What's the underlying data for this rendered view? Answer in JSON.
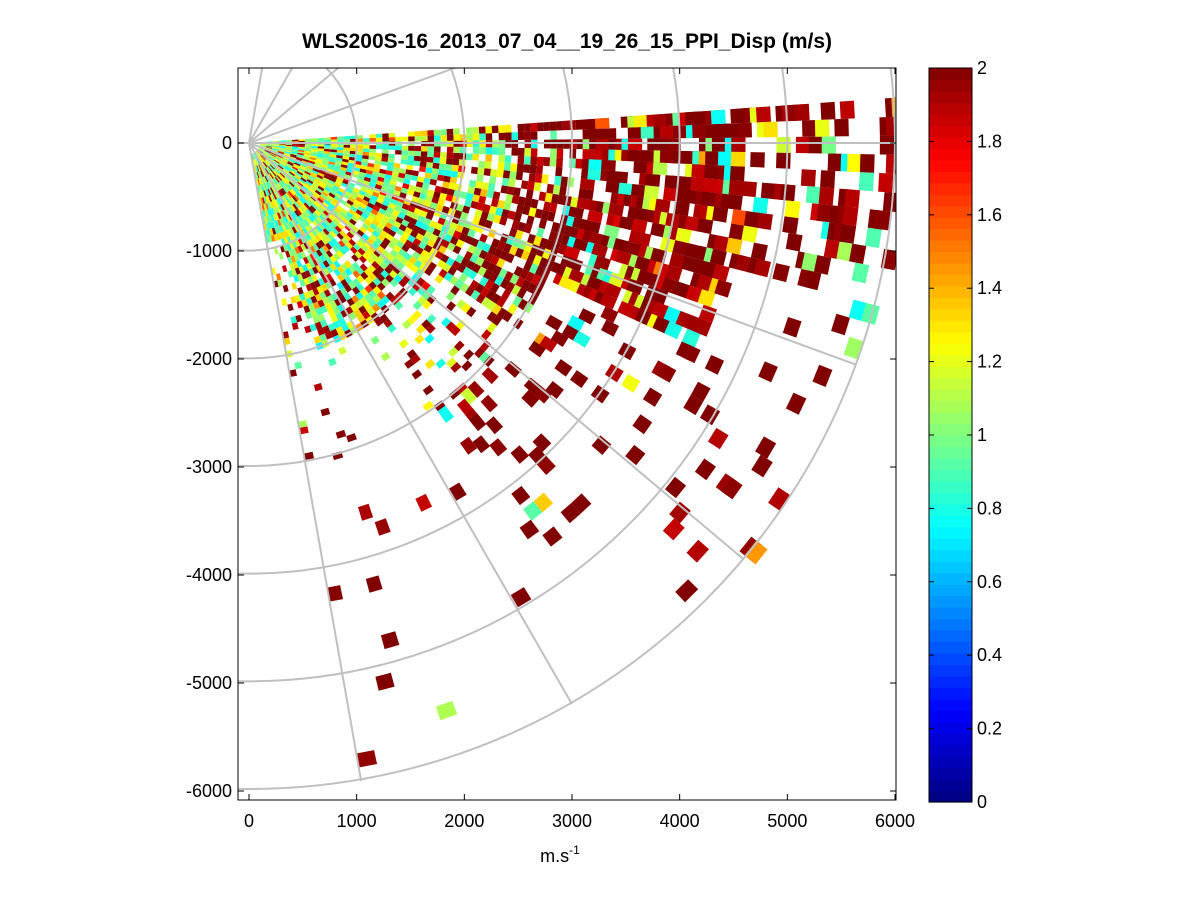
{
  "chart_data": {
    "type": "heatmap",
    "subtype": "polar-ppi-scan",
    "title": "WLS200S-16_2013_07_04__19_26_15_PPI_Disp (m/s)",
    "xlabel": "m.s",
    "xlabel_superscript": "-1",
    "ylabel": "",
    "xlim": [
      -30,
      6000
    ],
    "ylim": [
      -6100,
      650
    ],
    "xticks": [
      0,
      1000,
      2000,
      3000,
      4000,
      5000,
      6000
    ],
    "xtick_labels": [
      "0",
      "1000",
      "2000",
      "3000",
      "4000",
      "5000",
      "6000"
    ],
    "yticks": [
      0,
      -1000,
      -2000,
      -3000,
      -4000,
      -5000,
      -6000
    ],
    "ytick_labels": [
      "0",
      "-1000",
      "-2000",
      "-3000",
      "-4000",
      "-5000",
      "-6000"
    ],
    "polar_grid": {
      "range_rings": [
        1000,
        2000,
        3000,
        4000,
        5000,
        6000
      ],
      "azimuth_spokes_deg": [
        -80,
        -60,
        -40,
        -20,
        0,
        20,
        40,
        60,
        80
      ]
    },
    "scan": {
      "azimuth_min_deg": -80,
      "azimuth_max_deg": 4,
      "range_start": 100,
      "range_end": 6000
    },
    "colorbar": {
      "colormap": "jet",
      "min": 0,
      "max": 2,
      "ticks": [
        0,
        0.2,
        0.4,
        0.6,
        0.8,
        1,
        1.2,
        1.4,
        1.6,
        1.8,
        2
      ],
      "tick_labels": [
        "0",
        "0.2",
        "0.4",
        "0.6",
        "0.8",
        "1",
        "1.2",
        "1.4",
        "1.6",
        "1.8",
        "2"
      ]
    },
    "data_description_note": "Dense near-range (<2500 m) cells mostly 0.8-1.3 m/s with scattered higher values; far-range cells sparse and mostly saturated at 2 m/s."
  }
}
